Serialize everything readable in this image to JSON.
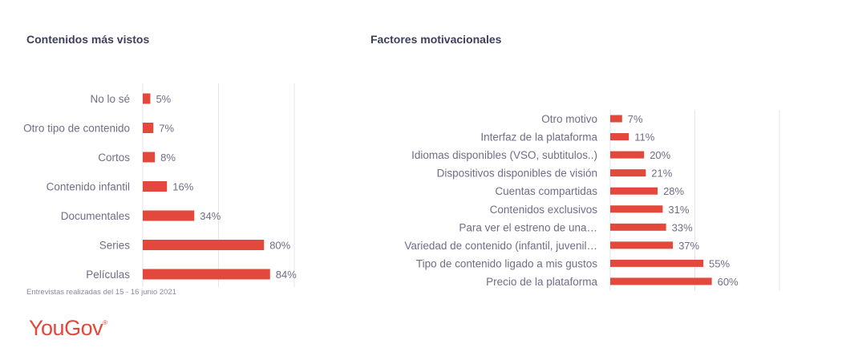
{
  "footnote": "Entrevistas realizadas del 15 - 16 junio 2021",
  "logo": {
    "text": "YouGov",
    "mark": "®"
  },
  "colors": {
    "bar": "#e2483c",
    "text": "#6f6e86",
    "title": "#3e3f5a"
  },
  "chart_data": [
    {
      "type": "bar",
      "orientation": "horizontal",
      "title": "Contenidos más vistos",
      "categories": [
        "No lo sé",
        "Otro tipo de contenido",
        "Cortos",
        "Contenido infantil",
        "Documentales",
        "Series",
        "Películas"
      ],
      "values": [
        5,
        7,
        8,
        16,
        34,
        80,
        84
      ],
      "value_labels": [
        "5%",
        "7%",
        "8%",
        "16%",
        "34%",
        "80%",
        "84%"
      ],
      "xlim": [
        0,
        100
      ],
      "grid": true
    },
    {
      "type": "bar",
      "orientation": "horizontal",
      "title": "Factores motivacionales",
      "categories": [
        "Otro motivo",
        "Interfaz de la plataforma",
        "Idiomas disponibles (VSO, subtitulos..)",
        "Dispositivos disponibles de visión",
        "Cuentas compartidas",
        "Contenidos exclusivos",
        "Para ver el estreno de una…",
        "Variedad de contenido (infantil, juvenil…",
        "Tipo de contenido ligado a mis gustos",
        "Precio de la plataforma"
      ],
      "values": [
        7,
        11,
        20,
        21,
        28,
        31,
        33,
        37,
        55,
        60
      ],
      "value_labels": [
        "7%",
        "11%",
        "20%",
        "21%",
        "28%",
        "31%",
        "33%",
        "37%",
        "55%",
        "60%"
      ],
      "xlim": [
        0,
        100
      ],
      "grid": true
    }
  ]
}
